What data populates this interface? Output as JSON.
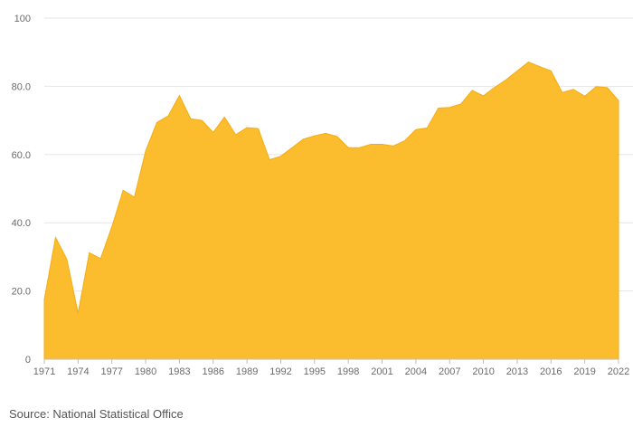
{
  "source_text": "Source: National Statistical Office",
  "colors": {
    "area_fill": "#FBBC2E",
    "area_stroke": "#F2AE14",
    "grid": "#e6e6e6",
    "tick_text": "#6b6b6b"
  },
  "chart_data": {
    "type": "area",
    "title": "",
    "xlabel": "",
    "ylabel": "",
    "xlim": [
      1971,
      2022
    ],
    "ylim": [
      0,
      100
    ],
    "grid": true,
    "y_ticks": [
      0,
      20,
      40,
      60,
      80,
      100
    ],
    "y_tick_labels": [
      "0",
      "20.0",
      "40.0",
      "60.0",
      "80.0",
      "100"
    ],
    "x_ticks": [
      1971,
      1974,
      1977,
      1980,
      1983,
      1986,
      1989,
      1992,
      1995,
      1998,
      2001,
      2004,
      2007,
      2010,
      2013,
      2016,
      2019,
      2022
    ],
    "x_tick_labels": [
      "1971",
      "1974",
      "1977",
      "1980",
      "1983",
      "1986",
      "1989",
      "1992",
      "1995",
      "1998",
      "2001",
      "2004",
      "2007",
      "2010",
      "2013",
      "2016",
      "2019",
      "2022"
    ],
    "x": [
      1971,
      1972,
      1973,
      1974,
      1975,
      1976,
      1977,
      1978,
      1979,
      1980,
      1981,
      1982,
      1983,
      1984,
      1985,
      1986,
      1987,
      1988,
      1989,
      1990,
      1991,
      1992,
      1993,
      1994,
      1995,
      1996,
      1997,
      1998,
      1999,
      2000,
      2001,
      2002,
      2003,
      2004,
      2005,
      2006,
      2007,
      2008,
      2009,
      2010,
      2011,
      2012,
      2013,
      2014,
      2015,
      2016,
      2017,
      2018,
      2019,
      2020,
      2021,
      2022
    ],
    "values": [
      17.5,
      35.7,
      29.3,
      13.5,
      31.2,
      29.5,
      38.8,
      49.5,
      47.5,
      61.0,
      69.4,
      71.3,
      77.3,
      70.5,
      70.0,
      66.5,
      71.0,
      65.8,
      67.9,
      67.6,
      58.5,
      59.5,
      62.0,
      64.5,
      65.5,
      66.2,
      65.3,
      62.0,
      62.0,
      63.0,
      63.0,
      62.5,
      64.0,
      67.3,
      67.8,
      73.6,
      73.8,
      74.8,
      78.8,
      77.2,
      79.7,
      81.9,
      84.5,
      87.1,
      85.8,
      84.5,
      78.2,
      79.1,
      77.1,
      79.9,
      79.6,
      75.8
    ]
  }
}
